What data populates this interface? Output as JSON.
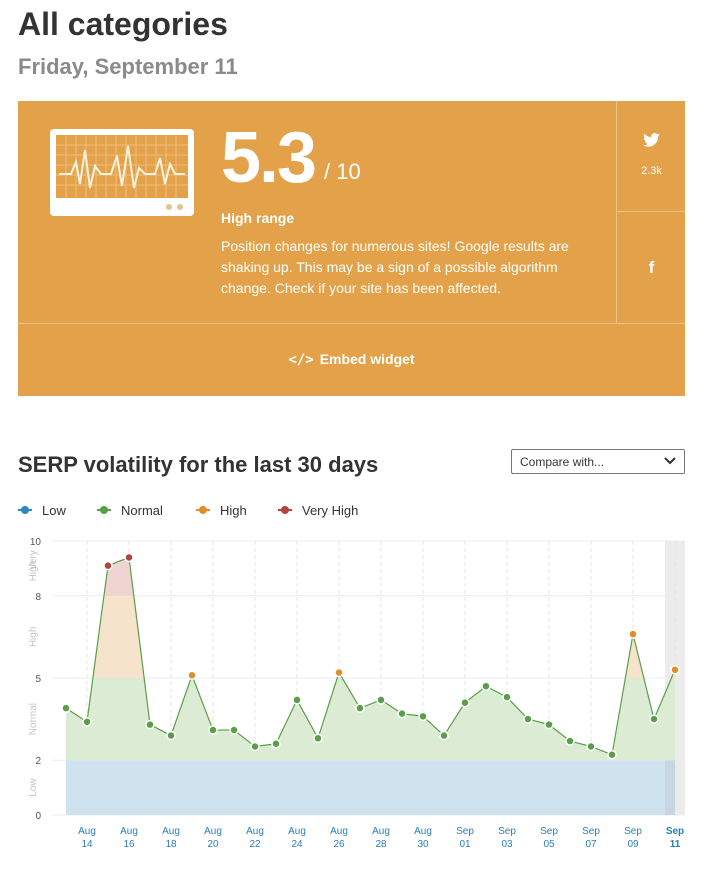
{
  "page": {
    "title": "All categories",
    "date": "Friday, September 11"
  },
  "card": {
    "score": "5.3",
    "score_max": "/ 10",
    "range_label": "High range",
    "description": "Position changes for numerous sites! Google results are shaking up. This may be a sign of a possible algorithm change. Check if your site has been affected.",
    "embed_label": "Embed widget",
    "embed_icon": "code-icon",
    "twitter_count": "2.3k",
    "twitter_icon": "twitter-icon",
    "facebook_icon": "facebook-icon",
    "facebook_glyph": "f",
    "background_color": "#e3a149"
  },
  "section": {
    "title": "SERP volatility for the last 30 days",
    "compare_placeholder": "Compare with...",
    "compare_icon": "chevron-down-icon"
  },
  "legend": [
    {
      "label": "Low",
      "color": "#2e86c1"
    },
    {
      "label": "Normal",
      "color": "#5a9e4a"
    },
    {
      "label": "High",
      "color": "#e08e2b"
    },
    {
      "label": "Very High",
      "color": "#b0453f"
    }
  ],
  "chart_data": {
    "type": "area",
    "title": "",
    "ylim": [
      0,
      10
    ],
    "y_ticks": [
      {
        "value": 0,
        "label": "0"
      },
      {
        "value": 2,
        "label": "2"
      },
      {
        "value": 5,
        "label": "5"
      },
      {
        "value": 8,
        "label": "8"
      },
      {
        "value": 10,
        "label": "10"
      }
    ],
    "bands": [
      {
        "label": "Low",
        "from": 0,
        "to": 2,
        "color": "#cfe3ef"
      },
      {
        "label": "Normal",
        "from": 2,
        "to": 5,
        "color": "#dcecd4"
      },
      {
        "label": "High",
        "from": 5,
        "to": 8,
        "color": "#f6e3cc"
      },
      {
        "label": "Very High",
        "from": 8,
        "to": 10,
        "color": "#f0d4d2"
      }
    ],
    "band_labels": [
      {
        "text": "Low",
        "y": 1
      },
      {
        "text": "Normal",
        "y": 3.5
      },
      {
        "text": "High",
        "y": 6.5
      },
      {
        "text": "Very",
        "y": 9.3
      },
      {
        "text": "High",
        "y": 8.9
      }
    ],
    "x_labels": [
      {
        "index": 1,
        "month": "Aug",
        "day": "14"
      },
      {
        "index": 3,
        "month": "Aug",
        "day": "16"
      },
      {
        "index": 5,
        "month": "Aug",
        "day": "18"
      },
      {
        "index": 7,
        "month": "Aug",
        "day": "20"
      },
      {
        "index": 9,
        "month": "Aug",
        "day": "22"
      },
      {
        "index": 11,
        "month": "Aug",
        "day": "24"
      },
      {
        "index": 13,
        "month": "Aug",
        "day": "26"
      },
      {
        "index": 15,
        "month": "Aug",
        "day": "28"
      },
      {
        "index": 17,
        "month": "Aug",
        "day": "30"
      },
      {
        "index": 19,
        "month": "Sep",
        "day": "01"
      },
      {
        "index": 21,
        "month": "Sep",
        "day": "03"
      },
      {
        "index": 23,
        "month": "Sep",
        "day": "05"
      },
      {
        "index": 25,
        "month": "Sep",
        "day": "07"
      },
      {
        "index": 27,
        "month": "Sep",
        "day": "09"
      },
      {
        "index": 29,
        "month": "Sep",
        "day": "11"
      }
    ],
    "series": [
      {
        "values": [
          3.9,
          3.4,
          9.1,
          9.4,
          3.3,
          2.9,
          5.1,
          3.1,
          3.1,
          2.5,
          2.6,
          4.2,
          2.8,
          5.2,
          3.9,
          4.2,
          3.7,
          3.6,
          2.9,
          4.1,
          4.7,
          4.3,
          3.5,
          3.3,
          2.7,
          2.5,
          2.2,
          6.6,
          3.5,
          5.3
        ]
      }
    ],
    "highlight_index": 29,
    "grid": true,
    "legend_position": "top-left"
  }
}
